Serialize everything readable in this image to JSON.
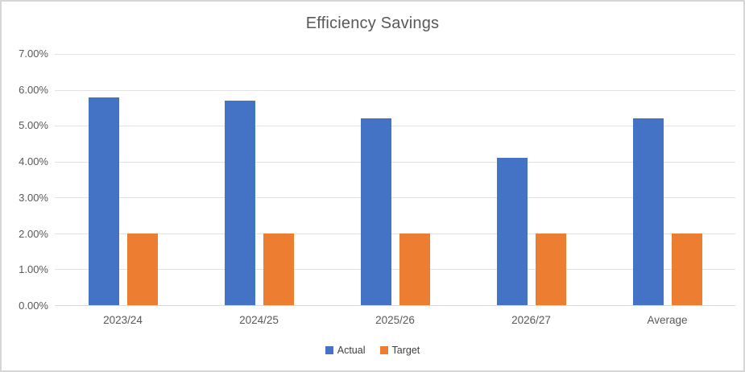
{
  "title": "Efficiency Savings",
  "chart_data": {
    "type": "bar",
    "title": "Efficiency Savings",
    "categories": [
      "2023/24",
      "2024/25",
      "2025/26",
      "2026/27",
      "Average"
    ],
    "series": [
      {
        "name": "Actual",
        "color": "#4472C4",
        "values": [
          5.8,
          5.7,
          5.2,
          4.1,
          5.2
        ]
      },
      {
        "name": "Target",
        "color": "#ED7D31",
        "values": [
          2.0,
          2.0,
          2.0,
          2.0,
          2.0
        ]
      }
    ],
    "value_format": "percent",
    "xlabel": "",
    "ylabel": "",
    "ylim": [
      0,
      7
    ],
    "ytick_step": 1,
    "ytick_labels": [
      "0.00%",
      "1.00%",
      "2.00%",
      "3.00%",
      "4.00%",
      "5.00%",
      "6.00%",
      "7.00%"
    ],
    "grid": true,
    "legend_position": "bottom"
  },
  "colors": {
    "actual_bar": "#4472C4",
    "target_bar": "#ED7D31",
    "title_text": "#595959",
    "axis_label_text": "#595959",
    "legend_text": "#404040",
    "gridline": "#E2E2E2",
    "axis_line": "#D9D9D9",
    "chart_border": "#D6D6D6",
    "background": "#FFFFFF"
  }
}
